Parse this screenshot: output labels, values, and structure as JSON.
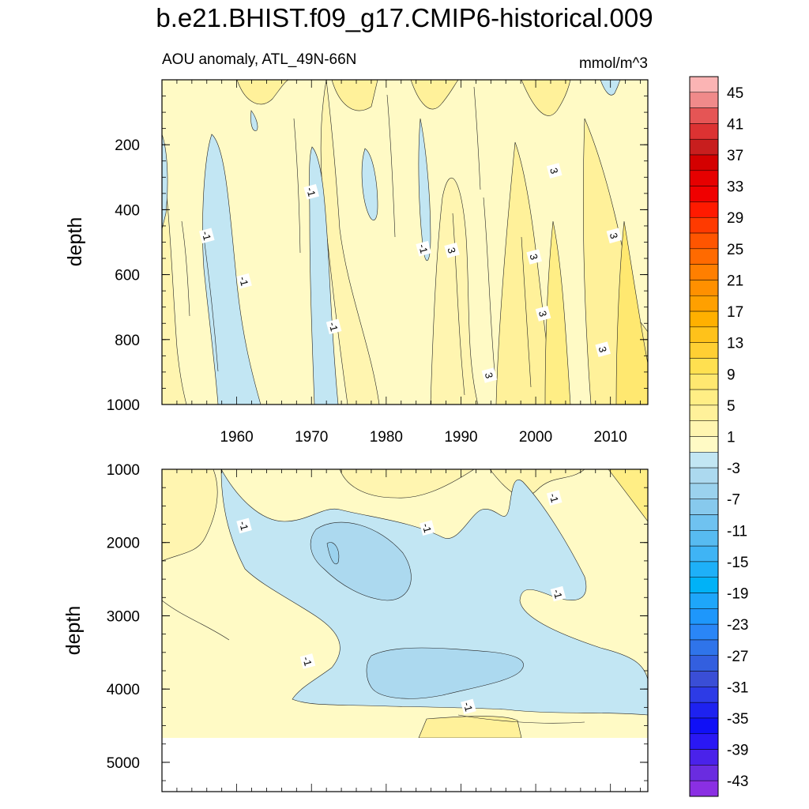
{
  "chart_data": {
    "type": "contour",
    "title": "b.e21.BHIST.f09_g17.CMIP6-historical.009",
    "subtitle_left": "AOU anomaly, ATL_49N-66N",
    "subtitle_right": "mmol/m^3",
    "x_ticks": [
      "1960",
      "1970",
      "1980",
      "1990",
      "2000",
      "2010"
    ],
    "xlim": [
      1950,
      2015
    ],
    "panels": [
      {
        "name": "upper",
        "ylabel": "depth",
        "ylim": [
          0,
          1000
        ],
        "y_ticks": [
          "200",
          "400",
          "600",
          "800",
          "1000"
        ],
        "contour_labels": [
          {
            "text": "-1",
            "x": 1970,
            "y": 345
          },
          {
            "text": "-1",
            "x": 1956,
            "y": 480
          },
          {
            "text": "-1",
            "x": 1961,
            "y": 620
          },
          {
            "text": "-1",
            "x": 1973,
            "y": 760
          },
          {
            "text": "-1",
            "x": 1985,
            "y": 520
          },
          {
            "text": "3",
            "x": 1988.8,
            "y": 525
          },
          {
            "text": "3",
            "x": 2002.5,
            "y": 280
          },
          {
            "text": "3",
            "x": 1999.8,
            "y": 545
          },
          {
            "text": "3",
            "x": 2001,
            "y": 720
          },
          {
            "text": "3",
            "x": 2010.5,
            "y": 480
          },
          {
            "text": "3",
            "x": 2009,
            "y": 830
          },
          {
            "text": "3",
            "x": 1993.8,
            "y": 910
          }
        ]
      },
      {
        "name": "lower",
        "ylabel": "depth",
        "ylim": [
          1000,
          5400
        ],
        "y_ticks": [
          "1000",
          "2000",
          "3000",
          "4000",
          "5000"
        ],
        "no_data_below": 4620,
        "contour_labels": [
          {
            "text": "-1",
            "x": 1961,
            "y": 1770
          },
          {
            "text": "-1",
            "x": 1985.5,
            "y": 1800
          },
          {
            "text": "-1",
            "x": 2002.5,
            "y": 1390
          },
          {
            "text": "-1",
            "x": 2003,
            "y": 2700
          },
          {
            "text": "-1",
            "x": 1969.5,
            "y": 3620
          },
          {
            "text": "-1",
            "x": 1991,
            "y": 4240
          }
        ]
      }
    ],
    "colorbar": {
      "labels": [
        "45",
        "41",
        "37",
        "33",
        "29",
        "25",
        "21",
        "17",
        "13",
        "9",
        "5",
        "1",
        "-3",
        "-7",
        "-11",
        "-15",
        "-19",
        "-23",
        "-27",
        "-31",
        "-35",
        "-39",
        "-43"
      ],
      "colors": [
        "#fbb4b4",
        "#f08a8a",
        "#e55555",
        "#dc3232",
        "#c81e1e",
        "#d40000",
        "#e60000",
        "#f00000",
        "#ff1a00",
        "#ff3a00",
        "#ff5500",
        "#ff6a00",
        "#ff7f00",
        "#ff9000",
        "#ffa000",
        "#ffb000",
        "#ffc21a",
        "#ffcf33",
        "#ffe050",
        "#ffe870",
        "#ffee85",
        "#fff19a",
        "#fff5b0",
        "#fffac5",
        "#c2e6f3",
        "#acd9ef",
        "#9bd2ee",
        "#87c9ed",
        "#6fc2f0",
        "#57bbf1",
        "#3fb4f5",
        "#1eb0f8",
        "#00b2f7",
        "#1ea6fa",
        "#1e97fb",
        "#2a86f6",
        "#2f74ea",
        "#335fdf",
        "#3a4ed6",
        "#2d3be6",
        "#1e22f0",
        "#1010f6",
        "#2a18f4",
        "#4a22ea",
        "#6a2ce0",
        "#8a2fe3"
      ]
    }
  }
}
